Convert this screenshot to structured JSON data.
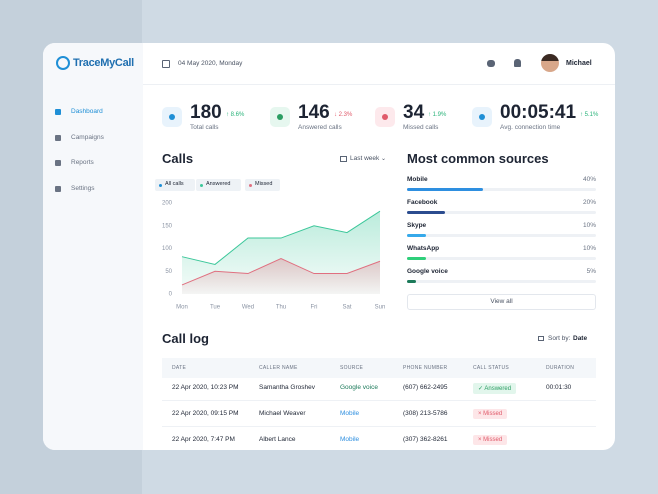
{
  "header": {
    "logo": "TraceMyCall",
    "date": "04 May 2020, Monday",
    "user": "Michael"
  },
  "nav": [
    "Dashboard",
    "Campaigns",
    "Reports",
    "Settings"
  ],
  "stats": [
    {
      "value": 180,
      "change": "↑ 8.6%",
      "label": "Total calls"
    },
    {
      "value": 146,
      "change": "↓ 2.3%",
      "label": "Answered calls"
    },
    {
      "value": 34,
      "change": "↑ 1.9%",
      "label": "Missed calls"
    },
    {
      "value": "00:05:41",
      "change": "↑ 5.1%",
      "label": "Avg. connection time"
    }
  ],
  "calls_chart": {
    "type": "area",
    "title": "Calls",
    "filter": "Last week",
    "all_label": "All calls",
    "x": [
      "Mon",
      "Tue",
      "Wed",
      "Thu",
      "Fri",
      "Sat",
      "Sun"
    ],
    "series": [
      {
        "name": "Answered",
        "color": "#3cc79a",
        "values": [
          82,
          65,
          123,
          123,
          150,
          135,
          182
        ]
      },
      {
        "name": "Missed",
        "color": "#e07080",
        "values": [
          20,
          50,
          45,
          78,
          45,
          45,
          72
        ]
      }
    ],
    "ylim": [
      0,
      200
    ],
    "yticks": [
      0,
      50,
      100,
      150,
      200
    ]
  },
  "sources": {
    "title": "Most common sources",
    "button": "View all",
    "items": [
      {
        "name": "Mobile",
        "value": 40,
        "value_label": "40%",
        "color": "#2e8fe0"
      },
      {
        "name": "Facebook",
        "value": 20,
        "value_label": "20%",
        "color": "#2b4c8f"
      },
      {
        "name": "Skype",
        "value": 10,
        "value_label": "10%",
        "color": "#36a9ea"
      },
      {
        "name": "WhatsApp",
        "value": 10,
        "value_label": "10%",
        "color": "#2fcf7a"
      },
      {
        "name": "Google voice",
        "value": 5,
        "value_label": "5%",
        "color": "#1c7a5a"
      }
    ]
  },
  "call_log": {
    "title": "Call log",
    "sort_label": "Sort by:",
    "sort_value": "Date",
    "columns": [
      "DATE",
      "CALLER NAME",
      "SOURCE",
      "PHONE NUMBER",
      "CALL STATUS",
      "DURATION"
    ],
    "rows": [
      [
        "22 Apr 2020, 10:23 PM",
        "Samantha Groshev",
        "Google voice",
        "(607) 662-2495",
        "✓ Answered",
        "00:01:30"
      ],
      [
        "22 Apr 2020, 09:15 PM",
        "Michael Weaver",
        "Mobile",
        "(308) 213-5786",
        "× Missed",
        null
      ],
      [
        "22 Apr 2020, 7:47 PM",
        "Albert Lance",
        "Mobile",
        "(307) 362-8261",
        "× Missed",
        null
      ]
    ]
  }
}
